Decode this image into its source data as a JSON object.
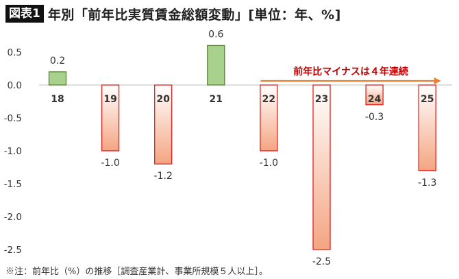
{
  "header": {
    "badge": "図表1",
    "title": "年別「前年比実質賃金総額変動」[単位：年、%]"
  },
  "footnote": "※注：前年比（%）の推移［調査産業計、事業所規模５人以上］。",
  "colors": {
    "positive_fill": "#a9d18e",
    "positive_stroke": "#548235",
    "negative_fill_top": "#ffffff",
    "negative_fill_bottom": "#f4a582",
    "negative_stroke": "#e02020",
    "arrow": "#ed7d31",
    "annotation_text": "#c00000"
  },
  "chart_data": {
    "type": "bar",
    "title": "年別「前年比実質賃金総額変動」[単位：年、%]",
    "categories": [
      "18",
      "19",
      "20",
      "21",
      "22",
      "23",
      "24",
      "25"
    ],
    "values": [
      0.2,
      -1.0,
      -1.2,
      0.6,
      -1.0,
      -2.5,
      -0.3,
      -1.3
    ],
    "data_labels": [
      "0.2",
      "-1.0",
      "-1.2",
      "0.6",
      "-1.0",
      "-2.5",
      "-0.3",
      "-1.3"
    ],
    "ylim": [
      -2.5,
      0.5
    ],
    "yticks": [
      0.5,
      0.0,
      -0.5,
      -1.0,
      -1.5,
      -2.0,
      -2.5
    ],
    "ytick_labels": [
      "0.5",
      "0.0",
      "-0.5",
      "-1.0",
      "-1.5",
      "-2.0",
      "-2.5"
    ],
    "grid": false,
    "annotation": {
      "text": "前年比マイナスは４年連続",
      "from_category": "22",
      "to_category": "25"
    }
  }
}
